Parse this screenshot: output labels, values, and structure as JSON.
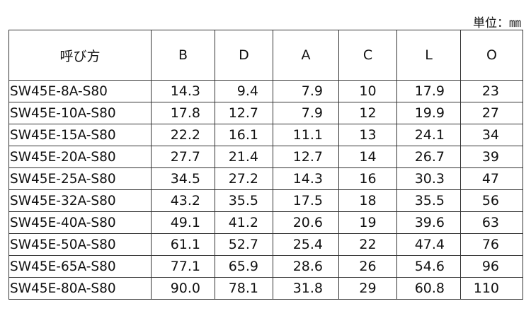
{
  "unit": "単位：㎜",
  "table": {
    "headers": [
      "呼び方",
      "B",
      "D",
      "A",
      "C",
      "L",
      "O"
    ],
    "rows": [
      [
        "SW45E-8A-S80",
        "14.3",
        "9.4",
        "7.9",
        "10",
        "17.9",
        "23"
      ],
      [
        "SW45E-10A-S80",
        "17.8",
        "12.7",
        "7.9",
        "12",
        "19.9",
        "27"
      ],
      [
        "SW45E-15A-S80",
        "22.2",
        "16.1",
        "11.1",
        "13",
        "24.1",
        "34"
      ],
      [
        "SW45E-20A-S80",
        "27.7",
        "21.4",
        "12.7",
        "14",
        "26.7",
        "39"
      ],
      [
        "SW45E-25A-S80",
        "34.5",
        "27.2",
        "14.3",
        "16",
        "30.3",
        "47"
      ],
      [
        "SW45E-32A-S80",
        "43.2",
        "35.5",
        "17.5",
        "18",
        "35.5",
        "56"
      ],
      [
        "SW45E-40A-S80",
        "49.1",
        "41.2",
        "20.6",
        "19",
        "39.6",
        "63"
      ],
      [
        "SW45E-50A-S80",
        "61.1",
        "52.7",
        "25.4",
        "22",
        "47.4",
        "76"
      ],
      [
        "SW45E-65A-S80",
        "77.1",
        "65.9",
        "28.6",
        "26",
        "54.6",
        "96"
      ],
      [
        "SW45E-80A-S80",
        "90.0",
        "78.1",
        "31.8",
        "29",
        "60.8",
        "110"
      ]
    ]
  }
}
